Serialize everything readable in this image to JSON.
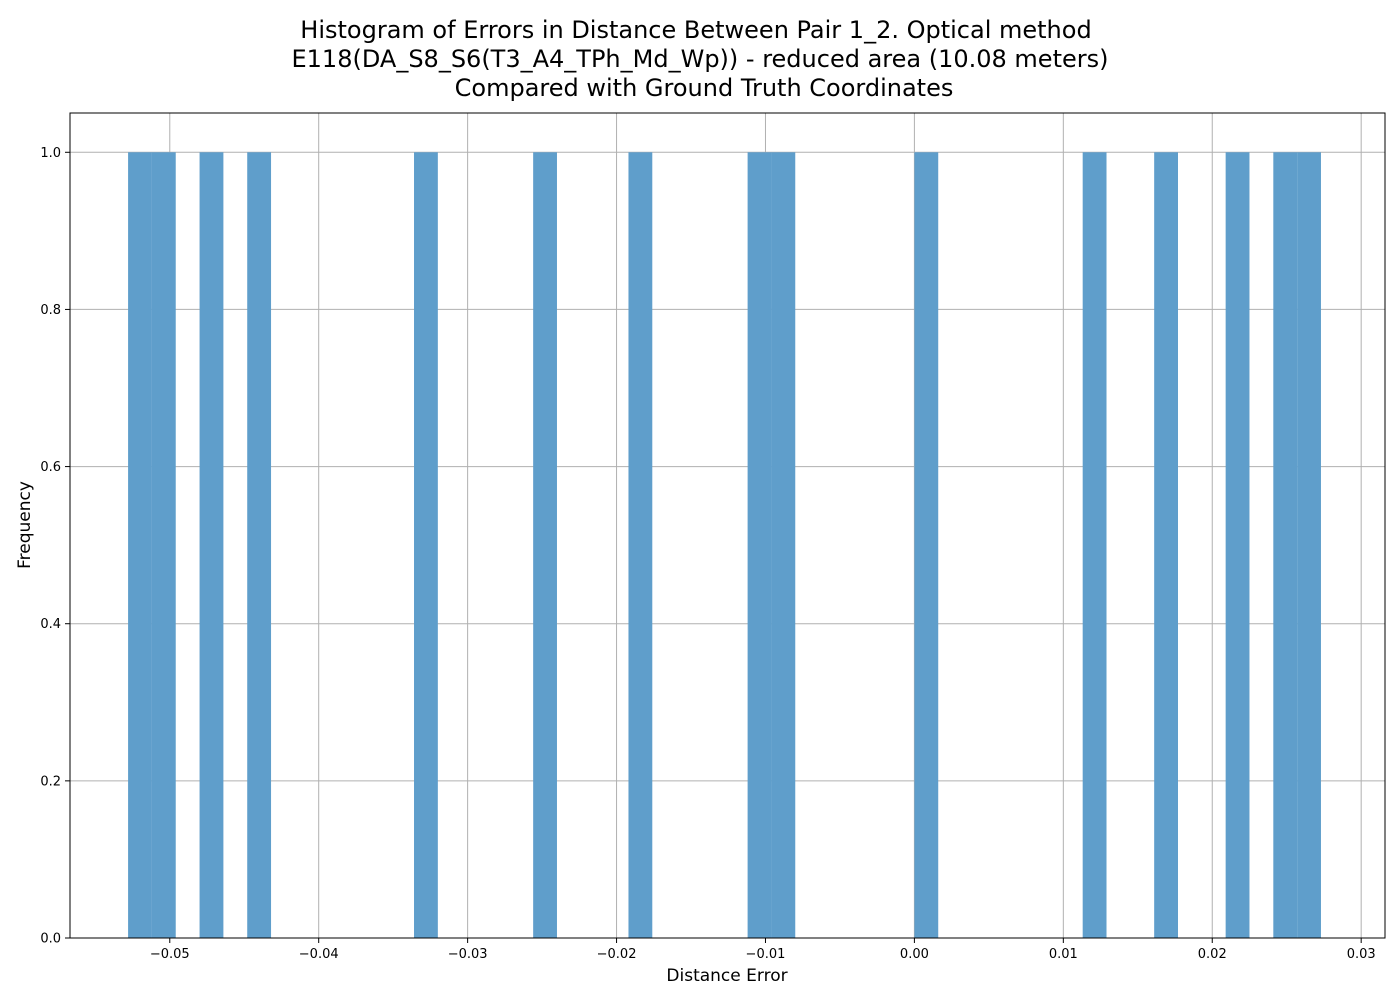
{
  "chart_data": {
    "type": "bar",
    "title_lines": [
      "Histogram of Errors in Distance Between Pair 1_2. Optical method",
      "E118(DA_S8_S6(T3_A4_TPh_Md_Wp)) - reduced area (10.08 meters)",
      "Compared with Ground Truth Coordinates"
    ],
    "xlabel": "Distance Error",
    "ylabel": "Frequency",
    "xlim": [
      -0.0567,
      0.0316
    ],
    "ylim": [
      0,
      1.05
    ],
    "grid": true,
    "bar_color": "#5f9ecb",
    "xticks": [
      -0.05,
      -0.04,
      -0.03,
      -0.02,
      -0.01,
      0.0,
      0.01,
      0.02,
      0.03
    ],
    "xtick_labels": [
      "−0.05",
      "−0.04",
      "−0.03",
      "−0.02",
      "−0.01",
      "0.00",
      "0.01",
      "0.02",
      "0.03"
    ],
    "yticks": [
      0.0,
      0.2,
      0.4,
      0.6,
      0.8,
      1.0
    ],
    "ytick_labels": [
      "0.0",
      "0.2",
      "0.4",
      "0.6",
      "0.8",
      "1.0"
    ],
    "bin_width": 0.0016,
    "bins": [
      {
        "start": -0.0528,
        "end": -0.0512,
        "count": 1
      },
      {
        "start": -0.0512,
        "end": -0.0496,
        "count": 1
      },
      {
        "start": -0.048,
        "end": -0.0464,
        "count": 1
      },
      {
        "start": -0.0448,
        "end": -0.0432,
        "count": 1
      },
      {
        "start": -0.0336,
        "end": -0.032,
        "count": 1
      },
      {
        "start": -0.0256,
        "end": -0.024,
        "count": 1
      },
      {
        "start": -0.0192,
        "end": -0.0176,
        "count": 1
      },
      {
        "start": -0.0112,
        "end": -0.0096,
        "count": 1
      },
      {
        "start": -0.0096,
        "end": -0.008,
        "count": 1
      },
      {
        "start": 0.0,
        "end": 0.0016,
        "count": 1
      },
      {
        "start": 0.0113,
        "end": 0.0129,
        "count": 1
      },
      {
        "start": 0.0161,
        "end": 0.0177,
        "count": 1
      },
      {
        "start": 0.0209,
        "end": 0.0225,
        "count": 1
      },
      {
        "start": 0.0241,
        "end": 0.0257,
        "count": 1
      },
      {
        "start": 0.0257,
        "end": 0.0273,
        "count": 1
      }
    ]
  }
}
